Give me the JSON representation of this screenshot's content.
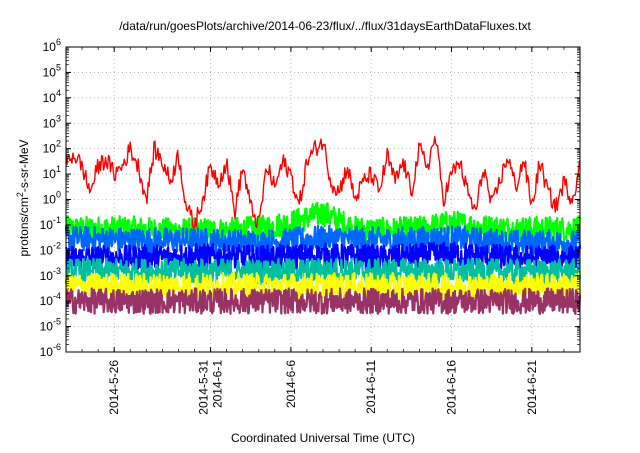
{
  "chart_data": {
    "type": "line",
    "title": "/data/run/goesPlots/archive/2014-06-23/flux/../flux/31daysEarthDataFluxes.txt",
    "xlabel": "Coordinated Universal Time (UTC)",
    "ylabel": "protons/cm2-s-sr-MeV",
    "ylabel_parts": {
      "pre": "protons/cm",
      "sup": "2",
      "post": "-s-sr-MeV"
    },
    "yscale": "log",
    "ylim": [
      1e-06,
      1000000.0
    ],
    "xlim": [
      "2014-05-23",
      "2014-06-24"
    ],
    "grid": true,
    "legend": "none",
    "y_ticks": [
      {
        "value": 1e-06,
        "base": "10",
        "exp": "-6"
      },
      {
        "value": 1e-05,
        "base": "10",
        "exp": "-5"
      },
      {
        "value": 0.0001,
        "base": "10",
        "exp": "-4"
      },
      {
        "value": 0.001,
        "base": "10",
        "exp": "-3"
      },
      {
        "value": 0.01,
        "base": "10",
        "exp": "-2"
      },
      {
        "value": 0.1,
        "base": "10",
        "exp": "-1"
      },
      {
        "value": 1,
        "base": "10",
        "exp": "0"
      },
      {
        "value": 10,
        "base": "10",
        "exp": "1"
      },
      {
        "value": 100,
        "base": "10",
        "exp": "2"
      },
      {
        "value": 1000,
        "base": "10",
        "exp": "3"
      },
      {
        "value": 10000.0,
        "base": "10",
        "exp": "4"
      },
      {
        "value": 100000.0,
        "base": "10",
        "exp": "5"
      },
      {
        "value": 1000000.0,
        "base": "10",
        "exp": "6"
      }
    ],
    "x_ticks": [
      {
        "date": "2014-05-26",
        "label": "2014-5-26"
      },
      {
        "date": "2014-06-01",
        "label": "2014-5-31",
        "label2": "2014-6-1"
      },
      {
        "date": "2014-06-06",
        "label": "2014-6-6"
      },
      {
        "date": "2014-06-11",
        "label": "2014-6-11"
      },
      {
        "date": "2014-06-16",
        "label": "2014-6-16"
      },
      {
        "date": "2014-06-21",
        "label": "2014-6-21"
      }
    ],
    "series": [
      {
        "color": "#00ff00",
        "approx_baseline": 0.07,
        "x": [
          "2014-05-23",
          "2014-05-25",
          "2014-05-27",
          "2014-05-29",
          "2014-05-31",
          "2014-06-02",
          "2014-06-04",
          "2014-06-06",
          "2014-06-08",
          "2014-06-10",
          "2014-06-12",
          "2014-06-14",
          "2014-06-16",
          "2014-06-18",
          "2014-06-20",
          "2014-06-22",
          "2014-06-24"
        ],
        "values": [
          0.07,
          0.07,
          0.07,
          0.06,
          0.06,
          0.06,
          0.07,
          0.12,
          0.3,
          0.07,
          0.06,
          0.07,
          0.12,
          0.08,
          0.07,
          0.07,
          0.07
        ]
      },
      {
        "color": "#0066ff",
        "approx_baseline": 0.02,
        "x": [
          "2014-05-23",
          "2014-05-27",
          "2014-05-31",
          "2014-06-04",
          "2014-06-08",
          "2014-06-12",
          "2014-06-16",
          "2014-06-20",
          "2014-06-24"
        ],
        "values": [
          0.03,
          0.025,
          0.025,
          0.02,
          0.03,
          0.025,
          0.03,
          0.02,
          0.02
        ]
      },
      {
        "color": "#0000ff",
        "approx_baseline": 0.005,
        "x": [
          "2014-05-23",
          "2014-05-27",
          "2014-05-31",
          "2014-06-04",
          "2014-06-08",
          "2014-06-12",
          "2014-06-16",
          "2014-06-20",
          "2014-06-24"
        ],
        "values": [
          0.005,
          0.005,
          0.006,
          0.005,
          0.006,
          0.005,
          0.007,
          0.005,
          0.005
        ]
      },
      {
        "color": "#00bfa0",
        "approx_baseline": 0.0015,
        "x": [
          "2014-05-23",
          "2014-05-27",
          "2014-05-31",
          "2014-06-04",
          "2014-06-08",
          "2014-06-12",
          "2014-06-16",
          "2014-06-20",
          "2014-06-24"
        ],
        "values": [
          0.0015,
          0.0015,
          0.0015,
          0.0014,
          0.0016,
          0.0015,
          0.0015,
          0.0014,
          0.0015
        ]
      },
      {
        "color": "#ffff00",
        "approx_baseline": 0.0004,
        "x": [
          "2014-05-23",
          "2014-05-27",
          "2014-05-31",
          "2014-06-04",
          "2014-06-08",
          "2014-06-12",
          "2014-06-16",
          "2014-06-20",
          "2014-06-24"
        ],
        "values": [
          0.0004,
          0.0004,
          0.0004,
          0.0004,
          0.0004,
          0.0004,
          0.0004,
          0.0004,
          0.0004
        ]
      },
      {
        "color": "#993366",
        "approx_baseline": 0.0001,
        "x": [
          "2014-05-23",
          "2014-05-27",
          "2014-05-31",
          "2014-06-04",
          "2014-06-08",
          "2014-06-12",
          "2014-06-16",
          "2014-06-20",
          "2014-06-24"
        ],
        "values": [
          0.0001,
          0.0001,
          0.0001,
          0.0001,
          0.0001,
          0.0001,
          0.0001,
          0.0001,
          0.0001
        ]
      },
      {
        "color": "#ff0000",
        "x": [
          "2014-05-23",
          "2014-05-23T12",
          "2014-05-24",
          "2014-05-24T12",
          "2014-05-25",
          "2014-05-25T12",
          "2014-05-26",
          "2014-05-26T12",
          "2014-05-27",
          "2014-05-27T12",
          "2014-05-28",
          "2014-05-28T12",
          "2014-05-29",
          "2014-05-29T12",
          "2014-05-30",
          "2014-05-30T12",
          "2014-05-31",
          "2014-05-31T12",
          "2014-06-01",
          "2014-06-01T12",
          "2014-06-02",
          "2014-06-02T12",
          "2014-06-03",
          "2014-06-03T12",
          "2014-06-04",
          "2014-06-04T12",
          "2014-06-05",
          "2014-06-05T12",
          "2014-06-06",
          "2014-06-06T12",
          "2014-06-07",
          "2014-06-07T12",
          "2014-06-08",
          "2014-06-08T12",
          "2014-06-09",
          "2014-06-09T12",
          "2014-06-10",
          "2014-06-10T12",
          "2014-06-11",
          "2014-06-11T12",
          "2014-06-12",
          "2014-06-12T12",
          "2014-06-13",
          "2014-06-13T12",
          "2014-06-14",
          "2014-06-14T12",
          "2014-06-15",
          "2014-06-15T12",
          "2014-06-16",
          "2014-06-16T12",
          "2014-06-17",
          "2014-06-17T12",
          "2014-06-18",
          "2014-06-18T12",
          "2014-06-19",
          "2014-06-19T12",
          "2014-06-20",
          "2014-06-20T12",
          "2014-06-21",
          "2014-06-21T12",
          "2014-06-22",
          "2014-06-22T12",
          "2014-06-23",
          "2014-06-23T12",
          "2014-06-24"
        ],
        "values": [
          30,
          60,
          20,
          2,
          20,
          40,
          10,
          20,
          100,
          20,
          1,
          100,
          30,
          5,
          60,
          0.5,
          0.1,
          1,
          20,
          5,
          30,
          0.3,
          20,
          0.5,
          0.1,
          20,
          3,
          30,
          10,
          0.5,
          30,
          100,
          200,
          5,
          2,
          20,
          1,
          5,
          10,
          2,
          50,
          5,
          30,
          2,
          100,
          20,
          300,
          1,
          10,
          30,
          2,
          0.3,
          20,
          0.5,
          5,
          50,
          3,
          40,
          0.5,
          30,
          2,
          0.5,
          5,
          1,
          20
        ]
      }
    ]
  }
}
